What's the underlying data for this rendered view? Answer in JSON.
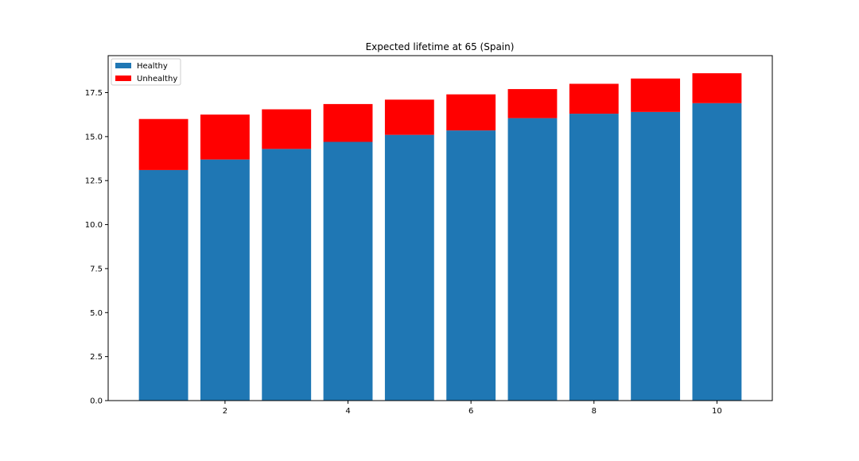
{
  "chart_data": {
    "type": "bar",
    "stacked": true,
    "title": "Expected lifetime at 65 (Spain)",
    "xlabel": "",
    "ylabel": "",
    "x": [
      1,
      2,
      3,
      4,
      5,
      6,
      7,
      8,
      9,
      10
    ],
    "xlim": [
      0.1,
      10.9
    ],
    "ylim": [
      0,
      19.6
    ],
    "xticks": [
      2,
      4,
      6,
      8,
      10
    ],
    "xtick_labels": [
      "2",
      "4",
      "6",
      "8",
      "10"
    ],
    "yticks": [
      0,
      2.5,
      5,
      7.5,
      10,
      12.5,
      15,
      17.5
    ],
    "ytick_labels": [
      "0.0",
      "2.5",
      "5.0",
      "7.5",
      "10.0",
      "12.5",
      "15.0",
      "17.5"
    ],
    "grid": false,
    "legend_position": "upper-left",
    "series": [
      {
        "name": "Healthy",
        "color": "#1f77b4",
        "values": [
          13.1,
          13.7,
          14.3,
          14.7,
          15.1,
          15.35,
          16.05,
          16.3,
          16.4,
          16.9
        ]
      },
      {
        "name": "Unhealthy",
        "color": "#ff0000",
        "values": [
          2.9,
          2.55,
          2.25,
          2.15,
          2.0,
          2.05,
          1.65,
          1.7,
          1.9,
          1.7
        ]
      }
    ]
  }
}
